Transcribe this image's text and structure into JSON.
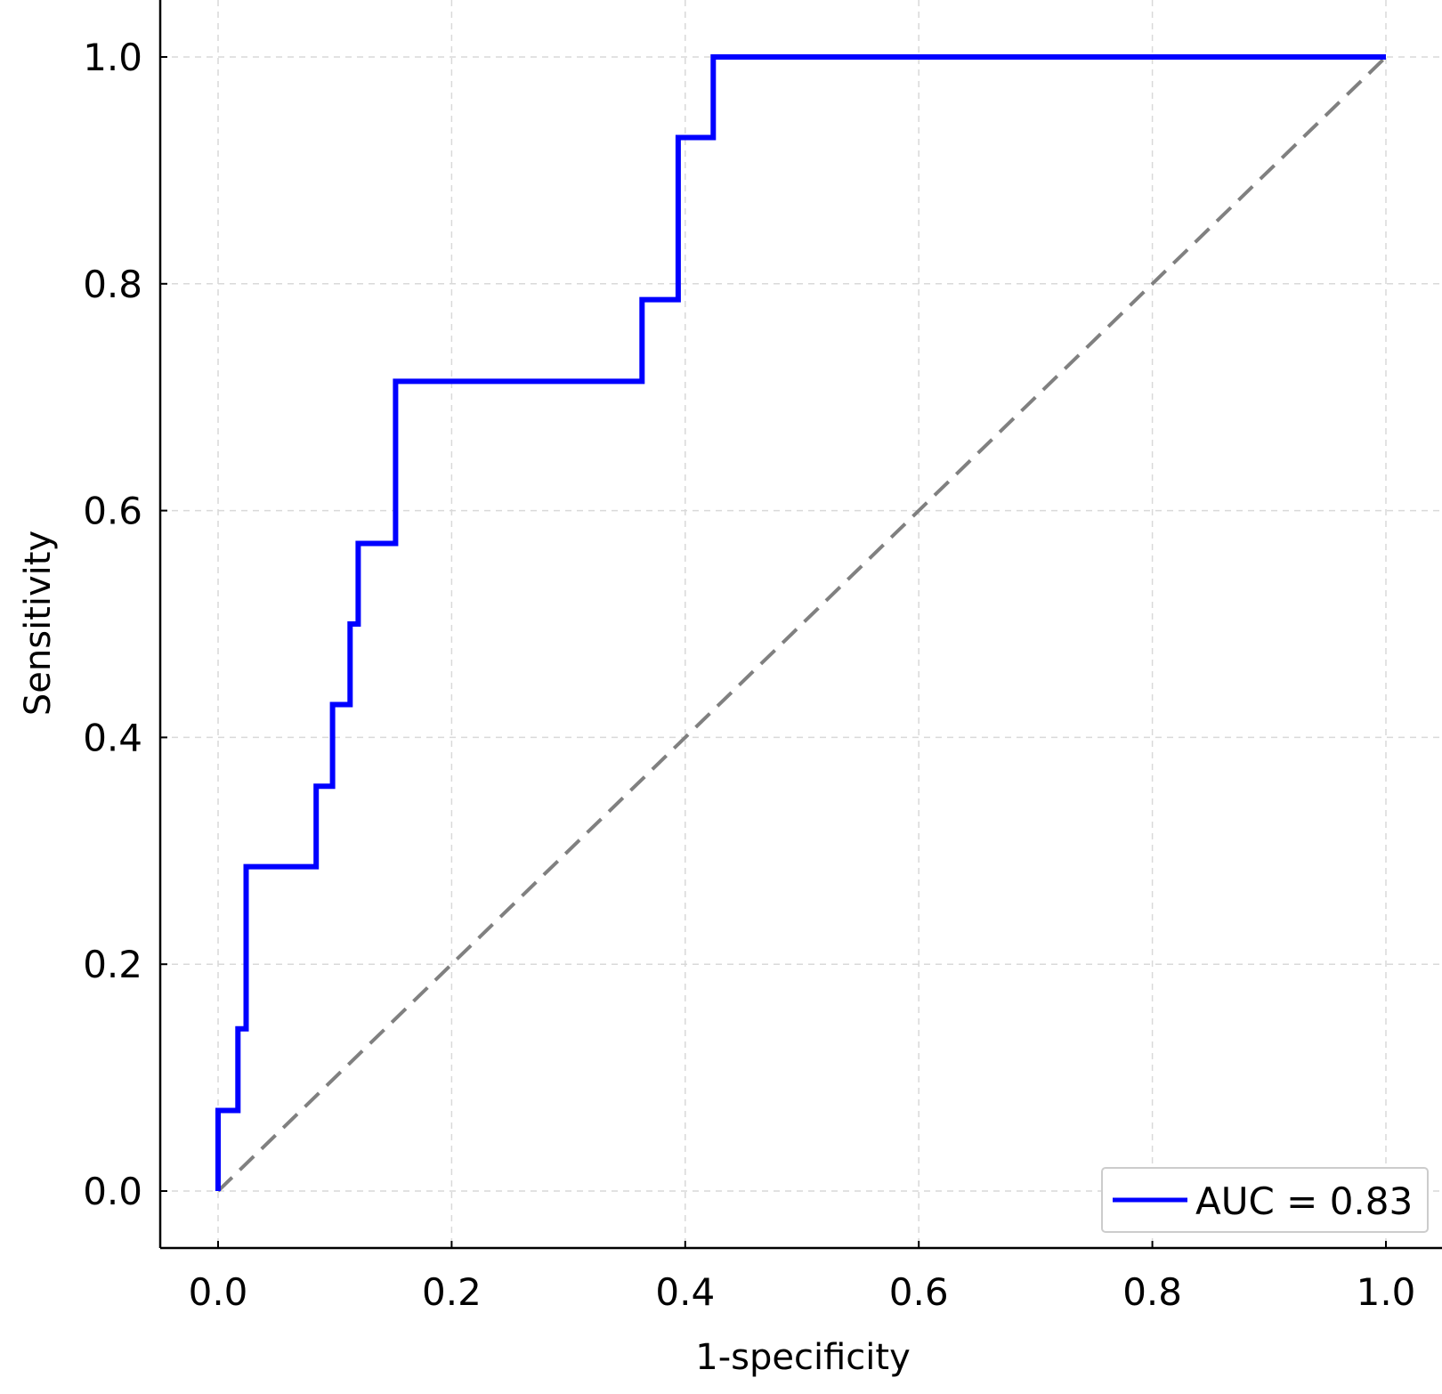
{
  "chart_data": {
    "type": "line",
    "title": "",
    "xlabel": "1-specificity",
    "ylabel": "Sensitivity",
    "xlim": [
      -0.05,
      1.05
    ],
    "ylim": [
      -0.05,
      1.05
    ],
    "grid": true,
    "legend_position": "bottom-right",
    "x_ticks": [
      "0.0",
      "0.2",
      "0.4",
      "0.6",
      "0.8",
      "1.0"
    ],
    "y_ticks": [
      "0.0",
      "0.2",
      "0.4",
      "0.6",
      "0.8",
      "1.0"
    ],
    "series": [
      {
        "name": "AUC = 0.83",
        "color": "#0000ff",
        "style": "solid",
        "x": [
          0.0,
          0.0,
          0.017,
          0.017,
          0.024,
          0.024,
          0.084,
          0.084,
          0.098,
          0.098,
          0.113,
          0.113,
          0.12,
          0.12,
          0.152,
          0.152,
          0.363,
          0.363,
          0.394,
          0.394,
          0.424,
          0.424,
          1.0
        ],
        "y": [
          0.0,
          0.071,
          0.071,
          0.143,
          0.143,
          0.286,
          0.286,
          0.357,
          0.357,
          0.429,
          0.429,
          0.5,
          0.5,
          0.571,
          0.571,
          0.714,
          0.714,
          0.786,
          0.786,
          0.929,
          0.929,
          1.0,
          1.0
        ]
      },
      {
        "color": "#808080",
        "style": "dashed",
        "x": [
          0.0,
          1.0
        ],
        "y": [
          0.0,
          1.0
        ]
      }
    ],
    "legend": [
      {
        "label": "AUC = 0.83",
        "color": "#0000ff"
      }
    ]
  }
}
